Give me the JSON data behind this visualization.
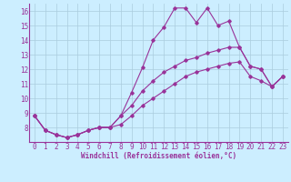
{
  "xlabel": "Windchill (Refroidissement éolien,°C)",
  "ylabel": "",
  "bg_color": "#cceeff",
  "line_color": "#993399",
  "grid_color": "#aaccdd",
  "xlim": [
    -0.5,
    23.5
  ],
  "ylim": [
    7,
    16.5
  ],
  "xticks": [
    0,
    1,
    2,
    3,
    4,
    5,
    6,
    7,
    8,
    9,
    10,
    11,
    12,
    13,
    14,
    15,
    16,
    17,
    18,
    19,
    20,
    21,
    22,
    23
  ],
  "yticks": [
    8,
    9,
    10,
    11,
    12,
    13,
    14,
    15,
    16
  ],
  "series1_x": [
    0,
    1,
    2,
    3,
    4,
    5,
    6,
    7,
    8,
    9,
    10,
    11,
    12,
    13,
    14,
    15,
    16,
    17,
    18,
    19,
    20,
    21,
    22,
    23
  ],
  "series1_y": [
    8.8,
    7.8,
    7.5,
    7.3,
    7.5,
    7.8,
    8.0,
    8.0,
    8.8,
    10.4,
    12.1,
    14.0,
    14.9,
    16.2,
    16.2,
    15.2,
    16.2,
    15.0,
    15.3,
    13.5,
    12.2,
    12.0,
    10.8,
    11.5
  ],
  "series2_x": [
    0,
    1,
    2,
    3,
    4,
    5,
    6,
    7,
    8,
    9,
    10,
    11,
    12,
    13,
    14,
    15,
    16,
    17,
    18,
    19,
    20,
    21,
    22,
    23
  ],
  "series2_y": [
    8.8,
    7.8,
    7.5,
    7.3,
    7.5,
    7.8,
    8.0,
    8.0,
    8.8,
    9.5,
    10.5,
    11.2,
    11.8,
    12.2,
    12.6,
    12.8,
    13.1,
    13.3,
    13.5,
    13.5,
    12.2,
    12.0,
    10.8,
    11.5
  ],
  "series3_x": [
    0,
    1,
    2,
    3,
    4,
    5,
    6,
    7,
    8,
    9,
    10,
    11,
    12,
    13,
    14,
    15,
    16,
    17,
    18,
    19,
    20,
    21,
    22,
    23
  ],
  "series3_y": [
    8.8,
    7.8,
    7.5,
    7.3,
    7.5,
    7.8,
    8.0,
    8.0,
    8.2,
    8.8,
    9.5,
    10.0,
    10.5,
    11.0,
    11.5,
    11.8,
    12.0,
    12.2,
    12.4,
    12.5,
    11.5,
    11.2,
    10.8,
    11.5
  ],
  "tick_fontsize": 5.5,
  "xlabel_fontsize": 5.5
}
